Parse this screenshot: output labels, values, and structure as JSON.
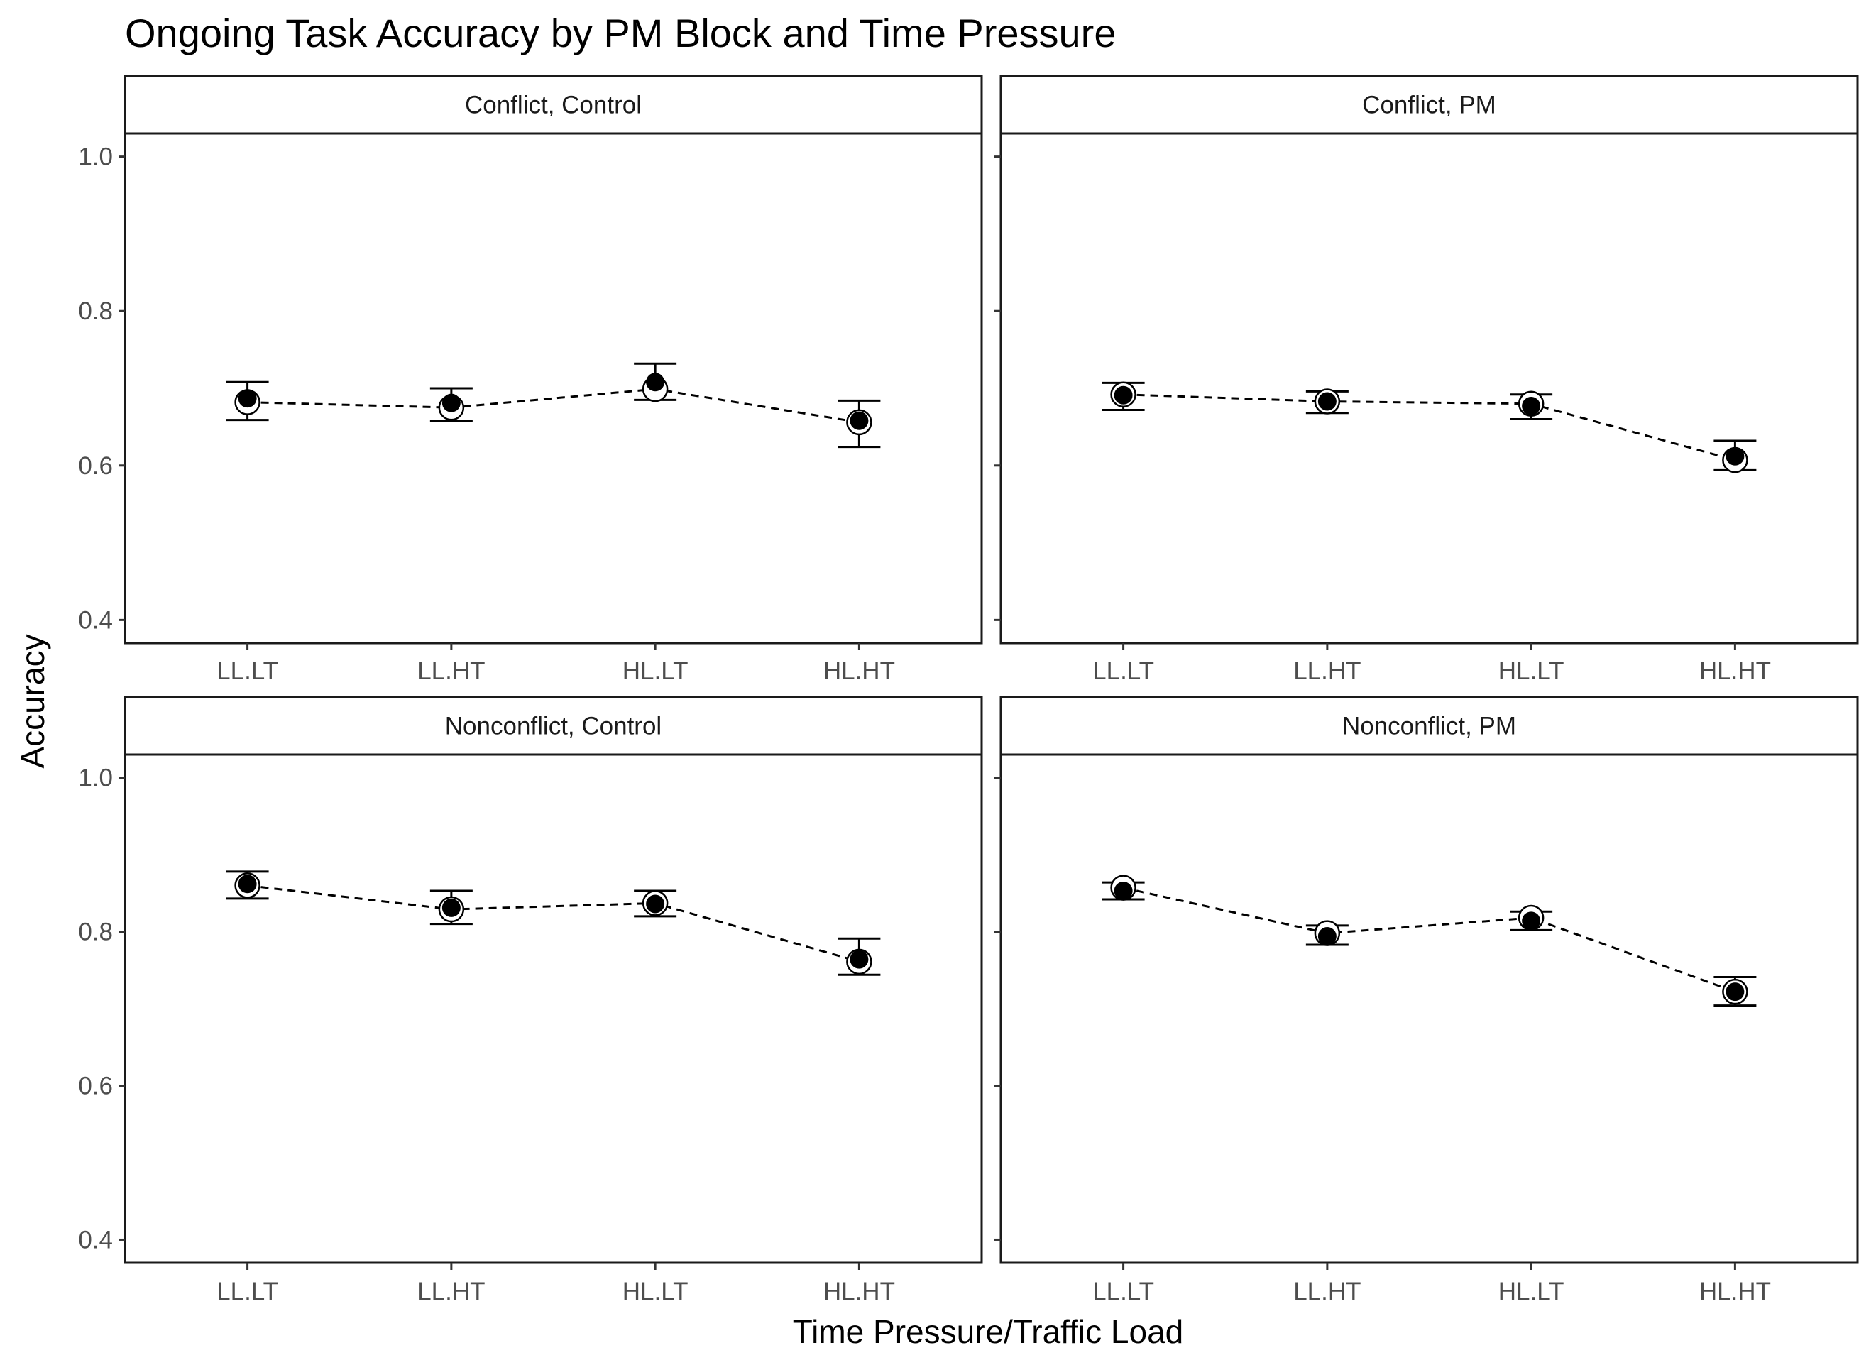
{
  "chart_data": {
    "type": "scatter",
    "title": "Ongoing Task Accuracy by PM Block and Time Pressure",
    "xlabel": "Time Pressure/Traffic Load",
    "ylabel": "Accuracy",
    "categories": [
      "LL.LT",
      "LL.HT",
      "HL.LT",
      "HL.HT"
    ],
    "ylim": [
      0.37,
      1.03
    ],
    "yticks": [
      0.4,
      0.6,
      0.8,
      1.0
    ],
    "ytick_labels": [
      "0.4",
      "0.6",
      "0.8",
      "1.0"
    ],
    "grid": false,
    "legend": "none",
    "layout": "2x2 facets",
    "marker_styles": {
      "filled": "solid black circle (with error bars)",
      "open": "hollow circle connected by dashed line"
    },
    "panels": [
      {
        "strip": "Conflict, Control",
        "filled": [
          0.687,
          0.681,
          0.708,
          0.658
        ],
        "open": [
          0.682,
          0.675,
          0.699,
          0.656
        ],
        "err_low": [
          0.659,
          0.658,
          0.685,
          0.624
        ],
        "err_high": [
          0.708,
          0.7,
          0.732,
          0.684
        ]
      },
      {
        "strip": "Conflict, PM",
        "filled": [
          0.691,
          0.683,
          0.677,
          0.612
        ],
        "open": [
          0.692,
          0.683,
          0.68,
          0.607
        ],
        "err_low": [
          0.672,
          0.668,
          0.66,
          0.594
        ],
        "err_high": [
          0.707,
          0.696,
          0.692,
          0.632
        ]
      },
      {
        "strip": "Nonconflict, Control",
        "filled": [
          0.862,
          0.831,
          0.836,
          0.764
        ],
        "open": [
          0.86,
          0.829,
          0.837,
          0.761
        ],
        "err_low": [
          0.843,
          0.81,
          0.82,
          0.744
        ],
        "err_high": [
          0.878,
          0.853,
          0.853,
          0.791
        ]
      },
      {
        "strip": "Nonconflict, PM",
        "filled": [
          0.853,
          0.794,
          0.814,
          0.722
        ],
        "open": [
          0.857,
          0.798,
          0.818,
          0.722
        ],
        "err_low": [
          0.842,
          0.783,
          0.802,
          0.704
        ],
        "err_high": [
          0.864,
          0.808,
          0.826,
          0.741
        ]
      }
    ]
  }
}
